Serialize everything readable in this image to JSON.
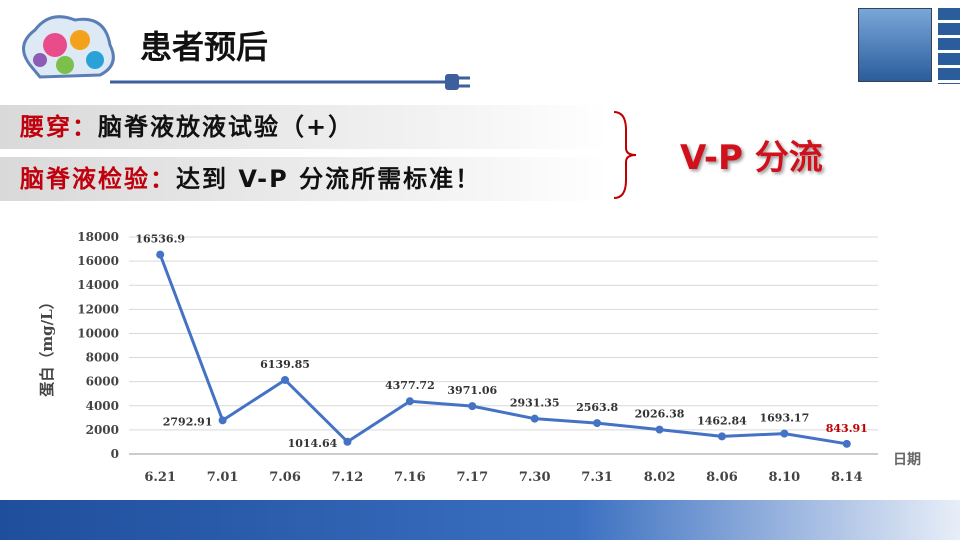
{
  "header": {
    "title": "患者预后"
  },
  "lines": [
    {
      "label": "腰穿：",
      "text": "脑脊液放液试验（+）"
    },
    {
      "label": "脑脊液检验：",
      "text": "达到 V-P 分流所需标准！"
    }
  ],
  "conclusion": "V-P 分流",
  "chart_data": {
    "type": "line",
    "ylabel": "蛋白（mg/L）",
    "xlabel": "日期",
    "categories": [
      "6.21",
      "7.01",
      "7.06",
      "7.12",
      "7.16",
      "7.17",
      "7.30",
      "7.31",
      "8.02",
      "8.06",
      "8.10",
      "8.14"
    ],
    "values": [
      16536.9,
      2792.91,
      6139.85,
      1014.64,
      4377.72,
      3971.06,
      2931.35,
      2563.8,
      2026.38,
      1462.84,
      1693.17,
      843.91
    ],
    "value_label_colors": [
      "#333",
      "#333",
      "#333",
      "#333",
      "#333",
      "#333",
      "#333",
      "#333",
      "#333",
      "#333",
      "#333",
      "#c00000"
    ],
    "color": "#4472c4",
    "ylim": [
      0,
      18000
    ],
    "yticks": [
      0,
      2000,
      4000,
      6000,
      8000,
      10000,
      12000,
      14000,
      16000,
      18000
    ],
    "grid": true
  }
}
